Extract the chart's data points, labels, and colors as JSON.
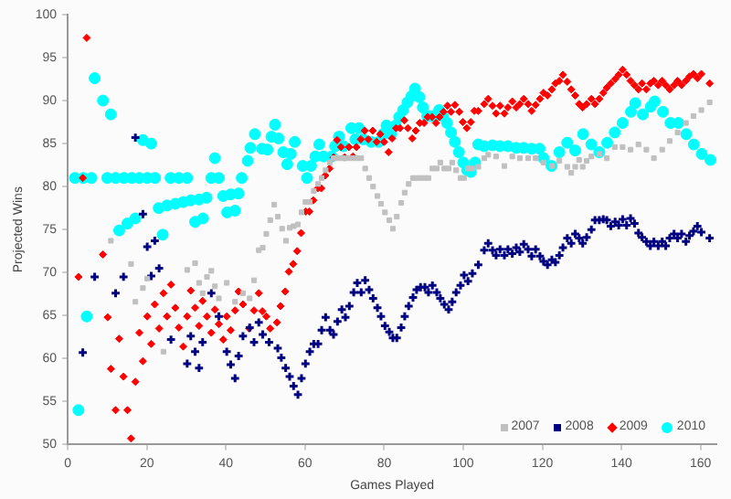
{
  "chart_data": {
    "type": "scatter",
    "xlabel": "Games Played",
    "ylabel": "Projected Wins",
    "xlim": [
      0,
      164
    ],
    "xticks": [
      0,
      20,
      40,
      60,
      80,
      100,
      120,
      140,
      160
    ],
    "ylim": [
      50,
      100
    ],
    "yticks": [
      50,
      55,
      60,
      65,
      70,
      75,
      80,
      85,
      90,
      95,
      100
    ],
    "grid": false,
    "legend": "bottom right",
    "series": [
      {
        "name": "2007",
        "color": "#c0c0c0",
        "marker": "square",
        "x": [
          10.9,
          16,
          17.1,
          19,
          20.1,
          24.2,
          30.2,
          32.2,
          33.2,
          34.1,
          35.2,
          36.3,
          37.2,
          38.2,
          40.2,
          42.3,
          44.3,
          46,
          47.1,
          48.3,
          49.3,
          50.2,
          51.2,
          52.2,
          53.1,
          54.2,
          55.2,
          56.1,
          57.1,
          58.2,
          59.1,
          60.1,
          61.2,
          62.2,
          63.3,
          64.2,
          65.2,
          66.3,
          67.2,
          68.2,
          69.3,
          70.2,
          71.2,
          72.3,
          73.2,
          74.2,
          75.2,
          76.2,
          77.2,
          78.3,
          79.2,
          80.2,
          81.3,
          82.2,
          83.2,
          84.3,
          85.2,
          86.2,
          87.3,
          88.2,
          89.2,
          90.3,
          91.2,
          92.2,
          93.3,
          94.2,
          95.2,
          96.3,
          97.2,
          98.2,
          99.3,
          100.2,
          101.2,
          102.3,
          103.8,
          105.3,
          106.3,
          108.3,
          110.4,
          112.4,
          114.3,
          116.4,
          118.3,
          120.3,
          122.4,
          124.3,
          126.3,
          127.3,
          128.3,
          129.3,
          130.2,
          131.2,
          132.4,
          134.4,
          136.3,
          138.3,
          140.3,
          142.3,
          144.3,
          146.3,
          148.2,
          150.3,
          152.2,
          154.2,
          156.3,
          158.2,
          160.2,
          162.3
        ],
        "values": [
          73.7,
          71,
          66.6,
          68.2,
          69.3,
          60.8,
          70.3,
          71.1,
          68.8,
          67.6,
          69.5,
          70.2,
          68.4,
          67,
          68.8,
          66.6,
          67.6,
          67,
          69.1,
          72.6,
          72.9,
          74.5,
          76.1,
          77.9,
          76.5,
          75.1,
          73.7,
          75.2,
          75.4,
          75.6,
          77,
          78.2,
          78.2,
          79.5,
          80.3,
          81,
          81.9,
          82.8,
          83.3,
          83.3,
          83.3,
          83.3,
          83.3,
          83.3,
          83.3,
          83.3,
          82.1,
          81,
          80,
          78.9,
          78,
          77,
          76.1,
          75.1,
          76.5,
          78.1,
          79.3,
          80.3,
          81,
          81,
          81,
          81,
          81,
          82.1,
          82.1,
          82.8,
          82.1,
          82.1,
          82.8,
          81.9,
          81,
          81,
          82.1,
          82.1,
          82.3,
          83.3,
          83.7,
          83.5,
          82.4,
          83.5,
          83.3,
          83.3,
          83.3,
          82.8,
          82.4,
          83,
          82.3,
          81.6,
          82.3,
          83.1,
          82.3,
          83,
          83.5,
          83.8,
          83.3,
          84.6,
          84.6,
          84.3,
          84.9,
          84.3,
          83.3,
          84.3,
          85.3,
          86.3,
          87.4,
          88.2,
          88.9,
          89.8
        ]
      },
      {
        "name": "2008",
        "color": "#000080",
        "marker": "cross",
        "x": [
          3.8,
          6.8,
          12.1,
          14.1,
          17.1,
          19,
          20.1,
          21.1,
          22,
          23.1,
          26.1,
          30.2,
          31.1,
          32.2,
          33.2,
          34.1,
          36.3,
          38.2,
          40.2,
          41.2,
          42.3,
          43.2,
          44.3,
          46,
          47.1,
          48.3,
          49.3,
          50.9,
          53.1,
          54,
          55.1,
          56.1,
          57.1,
          58.2,
          59.1,
          60.1,
          61.2,
          62.2,
          63.3,
          64.2,
          65.2,
          66.3,
          67.2,
          68.2,
          69.3,
          70.2,
          71.2,
          72.3,
          73.2,
          74.2,
          75.2,
          76.2,
          77.2,
          78.3,
          79.2,
          80.2,
          81.3,
          82.2,
          83.2,
          84.3,
          85.2,
          86.2,
          87.3,
          88.2,
          89.2,
          90.3,
          91.2,
          92.2,
          93.3,
          94.2,
          95.2,
          96.3,
          97.2,
          98.2,
          99.3,
          100.2,
          101.2,
          102.3,
          103.8,
          105.3,
          106.3,
          107.4,
          108.3,
          109.3,
          110.4,
          111.3,
          112.4,
          113.4,
          114.3,
          115.3,
          116.4,
          117.3,
          118.3,
          119.4,
          120.3,
          121.3,
          122.4,
          123.3,
          124.3,
          125.2,
          126.3,
          127.3,
          128.3,
          129.3,
          130.2,
          131.2,
          132.4,
          133.3,
          134.4,
          135.4,
          136.3,
          137.3,
          138.4,
          139.3,
          140.3,
          141.3,
          142.3,
          143.3,
          144.3,
          145.2,
          146.3,
          147.3,
          148.2,
          149.3,
          150.3,
          151.2,
          152.2,
          153.3,
          154.2,
          155.2,
          156.3,
          157.2,
          158.2,
          159.2,
          160.2,
          162.3
        ],
        "values": [
          60.7,
          69.5,
          67.6,
          69.5,
          85.7,
          76.8,
          73,
          69.6,
          73.7,
          70.5,
          62.2,
          59.4,
          62.6,
          60.8,
          58.9,
          61.9,
          67.6,
          64.9,
          60.8,
          59.3,
          57.7,
          60.3,
          62.6,
          63.6,
          61.9,
          64.2,
          62.8,
          61.9,
          61.2,
          60.1,
          58.9,
          57.9,
          56.8,
          55.8,
          57.7,
          59.4,
          60.8,
          61.7,
          61.7,
          63.3,
          64.8,
          63.3,
          62.8,
          64.3,
          65.7,
          64.8,
          66.1,
          67.7,
          68.8,
          67.7,
          69.1,
          68,
          67,
          65.9,
          64.9,
          63.8,
          63.1,
          62.4,
          62.4,
          63.6,
          64.9,
          66.1,
          67.1,
          68,
          68.3,
          68.3,
          67.7,
          68.5,
          67.7,
          67,
          66.3,
          65.7,
          66.6,
          67.7,
          68.5,
          69.7,
          69,
          69.9,
          70.9,
          72.6,
          73.4,
          72.6,
          72,
          72.7,
          72,
          72.7,
          72.2,
          72.9,
          72.4,
          73.3,
          72.7,
          71.9,
          72.7,
          71.9,
          71.3,
          70.9,
          71.5,
          71.2,
          72,
          72.9,
          74,
          73.4,
          74.5,
          74,
          73.4,
          74.1,
          75,
          76.1,
          76.1,
          76.2,
          76.1,
          75.4,
          75.9,
          75.5,
          76.2,
          75.5,
          76.3,
          75.7,
          74.6,
          74.1,
          73.6,
          73.1,
          73.6,
          73.1,
          73.6,
          73.1,
          74,
          74.5,
          74,
          74.5,
          73.6,
          74.3,
          74.8,
          75.4,
          74.7,
          74
        ]
      },
      {
        "name": "2009",
        "color": "#ff0000",
        "marker": "diamond",
        "x": [
          4.8,
          3.8,
          2.7,
          8.9,
          10.1,
          10.9,
          12.1,
          13,
          14.1,
          15.1,
          16,
          17.1,
          18.1,
          19,
          20.1,
          21.1,
          22,
          23.1,
          24.2,
          25.1,
          26.1,
          27.2,
          28.1,
          29.2,
          30.2,
          31.1,
          32.2,
          33.2,
          34.1,
          35.2,
          36.3,
          37.2,
          38.2,
          39.3,
          40.2,
          41.2,
          42.3,
          43.2,
          44.3,
          45.9,
          47.1,
          48.3,
          49.2,
          50.2,
          51.2,
          52.9,
          53.8,
          55,
          55.9,
          57,
          58,
          59,
          60.2,
          61.1,
          62.1,
          63.2,
          64.1,
          65.1,
          66.2,
          67.2,
          68.1,
          69.1,
          70,
          71.1,
          72.1,
          73,
          74.1,
          75.1,
          76,
          77.1,
          78.1,
          79,
          80,
          81.1,
          82,
          83,
          84,
          85.1,
          86,
          87.1,
          88,
          89,
          90.1,
          91,
          92.1,
          93.1,
          94,
          95,
          96,
          96.9,
          97.9,
          99,
          99.9,
          100.9,
          101.9,
          102.8,
          103.8,
          105.3,
          106.3,
          107.4,
          108.3,
          109.3,
          110.4,
          111.3,
          112.4,
          113.4,
          114.3,
          115.3,
          116.4,
          117.3,
          118.3,
          119.4,
          120.3,
          121.3,
          122.4,
          123.3,
          124.3,
          125.2,
          126.3,
          127.3,
          128.3,
          129.3,
          130.2,
          131.2,
          132.4,
          133.3,
          134.4,
          135.4,
          136.3,
          137.3,
          138.4,
          139.3,
          140.3,
          141.3,
          142.3,
          143.3,
          144.3,
          145.2,
          146.3,
          147.3,
          148.2,
          149.3,
          150.3,
          151.2,
          152.2,
          153.3,
          154.2,
          155.2,
          156.3,
          157.2,
          158.2,
          159.2,
          160.2,
          162.3
        ],
        "values": [
          97.3,
          81,
          69.5,
          72.1,
          64.8,
          58.8,
          54,
          62.3,
          57.9,
          54,
          50.7,
          57.3,
          63,
          59.7,
          64.9,
          61.7,
          66.3,
          63.5,
          67.6,
          64.9,
          68.6,
          65.9,
          63.6,
          61.4,
          64.9,
          67.9,
          65.9,
          63.8,
          66.7,
          64.9,
          63,
          65.7,
          64,
          62.2,
          64.9,
          63.3,
          65.6,
          67.8,
          66.3,
          63.5,
          65.6,
          67.6,
          65.5,
          64.9,
          63.5,
          64.2,
          66.1,
          67.8,
          70.1,
          71,
          72.5,
          74.6,
          77.1,
          77.1,
          78.4,
          79.8,
          79.8,
          81.3,
          82.1,
          83.4,
          85.4,
          84.6,
          83.4,
          84.6,
          83.5,
          84.6,
          85.5,
          86.5,
          85.5,
          86.5,
          85.2,
          86.1,
          85.2,
          84,
          85.6,
          86.8,
          86.8,
          87.7,
          86.8,
          85.6,
          86.5,
          87.4,
          87.4,
          88.1,
          88.1,
          87.4,
          88.1,
          88.7,
          89.4,
          88.7,
          89.5,
          88.7,
          87.5,
          86.8,
          87.5,
          88.8,
          88.8,
          89.6,
          90.2,
          89.4,
          88.5,
          89.4,
          88.5,
          89.2,
          89.9,
          89.2,
          89.6,
          90.2,
          89.6,
          88.8,
          89.5,
          90.2,
          90.9,
          90.6,
          91.3,
          92,
          92.3,
          93,
          92.2,
          91.3,
          90.6,
          89.6,
          89.2,
          89.6,
          90.2,
          89.6,
          90.2,
          90.9,
          91.5,
          92,
          92.5,
          93,
          93.6,
          93,
          92.3,
          91.8,
          91.3,
          92,
          91.3,
          92,
          92.3,
          91.8,
          92.3,
          91.8,
          91.3,
          91.8,
          92.3,
          91.8,
          92.3,
          92.8,
          93.1,
          92.6,
          93.1,
          92
        ]
      },
      {
        "name": "2010",
        "color": "#00ffff",
        "marker": "circle",
        "x": [
          2.7,
          4.8,
          1.8,
          3.9,
          6,
          10,
          12.1,
          14.2,
          16.2,
          18.1,
          20.1,
          22.1,
          26,
          28.1,
          30.2,
          36.3,
          38.2,
          44,
          6.8,
          8.9,
          10.9,
          19,
          21.1,
          13,
          15.1,
          17.1,
          24,
          23,
          25.1,
          27.2,
          29.2,
          31.1,
          33.2,
          35.1,
          32.2,
          34.2,
          37.2,
          39.3,
          41.2,
          43.2,
          40.3,
          42.3,
          45.5,
          46.2,
          47.3,
          49.1,
          50.5,
          51.5,
          52.4,
          53.3,
          54.5,
          55.5,
          56.4,
          57.4,
          59.4,
          60.5,
          61.5,
          62.6,
          63.6,
          64.7,
          66.7,
          67.6,
          68.6,
          69.7,
          71.7,
          72.7,
          73.6,
          74.7,
          76.7,
          78.6,
          79.7,
          80.6,
          81.8,
          82.9,
          83.8,
          84.8,
          85.9,
          86.9,
          87.8,
          88.9,
          89.8,
          90.9,
          91.9,
          92.9,
          93.9,
          94.8,
          95.9,
          96.9,
          97.9,
          98.9,
          100,
          101,
          101.9,
          103,
          103.8,
          105.3,
          107.4,
          109.3,
          111.3,
          113.4,
          115.3,
          117.3,
          119.3,
          120.3,
          122.3,
          124.3,
          126.3,
          128.3,
          130.3,
          132.4,
          134.4,
          136.4,
          138.3,
          140.3,
          142.4,
          143.5,
          145.4,
          147.4,
          148.4,
          150.5,
          152.4,
          154.4,
          156.4,
          158.3,
          160.3,
          162.5
        ],
        "values": [
          54,
          64.9,
          81,
          81,
          81,
          81,
          81,
          81,
          81,
          81,
          81,
          81,
          81,
          81,
          81,
          81,
          81,
          81,
          92.6,
          90,
          88.4,
          85.4,
          85,
          74.9,
          75.7,
          76.3,
          74.4,
          77.5,
          77.8,
          78,
          78.2,
          78.4,
          78.5,
          78.7,
          75.9,
          76.3,
          83.3,
          78.9,
          79.1,
          79.2,
          77,
          77.2,
          83,
          84.5,
          86.1,
          84.4,
          84.3,
          85.8,
          87.2,
          85.6,
          84,
          82.6,
          83.8,
          85.2,
          82.4,
          81,
          82.4,
          83.5,
          84.9,
          83.5,
          83.5,
          84.7,
          85.8,
          84.7,
          86.8,
          85.5,
          86.8,
          85.5,
          85.2,
          85.2,
          86.1,
          87.1,
          86.1,
          87.1,
          88.1,
          88.9,
          89.8,
          90.5,
          91.4,
          90.4,
          89.2,
          88.2,
          88.2,
          88.2,
          88.9,
          88.2,
          87.4,
          86.3,
          85.2,
          84,
          82.8,
          81.9,
          81.7,
          82.8,
          84.9,
          84.7,
          84.8,
          84.7,
          84.7,
          84.5,
          84.5,
          84.4,
          84.4,
          83.3,
          82.4,
          84,
          85.1,
          84.2,
          86.1,
          84.9,
          84,
          85.1,
          86.3,
          87.4,
          88.7,
          89.7,
          88.4,
          89.3,
          89.9,
          88.7,
          87.4,
          87.4,
          86.1,
          84.9,
          83.8,
          83.1
        ]
      }
    ]
  }
}
